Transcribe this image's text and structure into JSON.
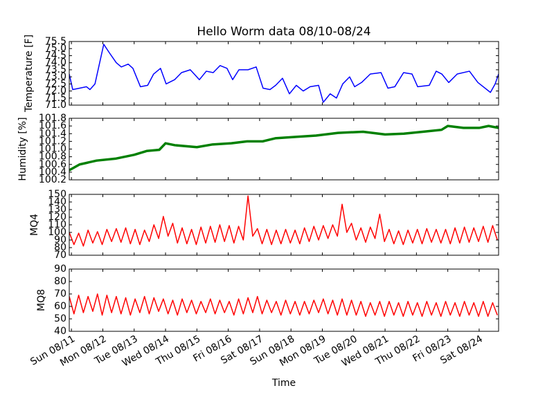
{
  "chart_data": {
    "type": "line",
    "title": "Hello Worm data 08/10-08/24",
    "xlabel": "Time",
    "xlim": [
      10.93,
      24.62
    ],
    "xticks": [
      {
        "value": 11,
        "label": "Sun 08/11"
      },
      {
        "value": 12,
        "label": "Mon 08/12"
      },
      {
        "value": 13,
        "label": "Tue 08/13"
      },
      {
        "value": 14,
        "label": "Wed 08/14"
      },
      {
        "value": 15,
        "label": "Thu 08/15"
      },
      {
        "value": 16,
        "label": "Fri 08/16"
      },
      {
        "value": 17,
        "label": "Sat 08/17"
      },
      {
        "value": 18,
        "label": "Sun 08/18"
      },
      {
        "value": 19,
        "label": "Mon 08/19"
      },
      {
        "value": 20,
        "label": "Tue 08/20"
      },
      {
        "value": 21,
        "label": "Wed 08/21"
      },
      {
        "value": 22,
        "label": "Thu 08/22"
      },
      {
        "value": 23,
        "label": "Fri 08/23"
      },
      {
        "value": 24,
        "label": "Sat 08/24"
      }
    ],
    "panels": [
      {
        "ylabel": "Temperature [F]",
        "ylim": [
          71.0,
          75.5
        ],
        "yticks": [
          {
            "value": 71,
            "label": "71.0"
          },
          71.5,
          {
            "value": 72,
            "label": "72.0"
          },
          72.5,
          {
            "value": 73,
            "label": "73.0"
          },
          73.5,
          {
            "value": 74,
            "label": "74.0"
          },
          74.5,
          {
            "value": 75,
            "label": "75.0"
          },
          75.5
        ],
        "series": [
          {
            "color": "#0000ff",
            "x": [
              10.93,
              11.04,
              11.26,
              11.48,
              11.59,
              11.75,
              12.03,
              12.21,
              12.43,
              12.59,
              12.81,
              12.96,
              13.2,
              13.43,
              13.62,
              13.84,
              14.02,
              14.29,
              14.51,
              14.79,
              15.08,
              15.3,
              15.52,
              15.74,
              15.96,
              16.14,
              16.34,
              16.63,
              16.89,
              17.11,
              17.33,
              17.51,
              17.73,
              17.95,
              18.17,
              18.39,
              18.61,
              18.88,
              19.03,
              19.25,
              19.45,
              19.65,
              19.87,
              20.03,
              20.25,
              20.53,
              20.87,
              21.09,
              21.31,
              21.59,
              21.86,
              22.04,
              22.41,
              22.63,
              22.81,
              23.03,
              23.3,
              23.69,
              23.96,
              24.36,
              24.51,
              24.62
            ],
            "values": [
              73.2,
              72.1,
              72.2,
              72.3,
              72.1,
              72.5,
              75.3,
              74.7,
              74.0,
              73.7,
              73.9,
              73.6,
              72.3,
              72.4,
              73.2,
              73.6,
              72.5,
              72.8,
              73.3,
              73.5,
              72.8,
              73.4,
              73.3,
              73.8,
              73.6,
              72.8,
              73.5,
              73.5,
              73.7,
              72.2,
              72.1,
              72.4,
              72.9,
              71.8,
              72.4,
              72.0,
              72.3,
              72.4,
              71.2,
              71.8,
              71.5,
              72.5,
              73.0,
              72.3,
              72.6,
              73.2,
              73.3,
              72.2,
              72.3,
              73.3,
              73.2,
              72.3,
              72.4,
              73.4,
              73.2,
              72.6,
              73.2,
              73.4,
              72.6,
              71.9,
              72.5,
              73.2
            ]
          }
        ]
      },
      {
        "ylabel": "Humidity [%]",
        "ylim": [
          100.2,
          101.8
        ],
        "yticks": [
          100.2,
          100.4,
          100.6,
          100.8,
          {
            "value": 101,
            "label": "101.0"
          },
          101.2,
          101.4,
          101.6,
          101.8
        ],
        "series": [
          {
            "color": "#008000",
            "x": [
              10.93,
              11.26,
              11.8,
              12.4,
              13.0,
              13.4,
              13.8,
              14.0,
              14.3,
              15.0,
              15.5,
              16.1,
              16.6,
              17.1,
              17.5,
              18.2,
              18.8,
              19.5,
              20.3,
              21.0,
              21.6,
              22.2,
              22.8,
              23.0,
              23.5,
              24.0,
              24.3,
              24.62
            ],
            "values": [
              100.45,
              100.6,
              100.7,
              100.75,
              100.85,
              100.95,
              100.98,
              101.15,
              101.1,
              101.05,
              101.12,
              101.15,
              101.2,
              101.2,
              101.28,
              101.32,
              101.35,
              101.42,
              101.45,
              101.38,
              101.4,
              101.45,
              101.5,
              101.6,
              101.55,
              101.55,
              101.6,
              101.55
            ]
          }
        ]
      },
      {
        "ylabel": "MQ4",
        "ylim": [
          70,
          150
        ],
        "yticks": [
          70,
          80,
          90,
          100,
          110,
          120,
          130,
          140,
          150
        ],
        "series": [
          {
            "color": "#ff0000",
            "x": [
              10.93,
              11.08,
              11.23,
              11.38,
              11.53,
              11.68,
              11.83,
              11.98,
              12.13,
              12.28,
              12.43,
              12.58,
              12.73,
              12.88,
              13.03,
              13.18,
              13.33,
              13.48,
              13.63,
              13.78,
              13.93,
              14.08,
              14.23,
              14.38,
              14.53,
              14.68,
              14.83,
              14.98,
              15.13,
              15.28,
              15.43,
              15.58,
              15.73,
              15.88,
              16.03,
              16.18,
              16.33,
              16.48,
              16.63,
              16.78,
              16.93,
              17.08,
              17.23,
              17.38,
              17.53,
              17.68,
              17.83,
              17.98,
              18.13,
              18.28,
              18.43,
              18.58,
              18.73,
              18.88,
              19.03,
              19.18,
              19.33,
              19.48,
              19.63,
              19.78,
              19.93,
              20.08,
              20.23,
              20.38,
              20.53,
              20.68,
              20.83,
              20.98,
              21.13,
              21.28,
              21.43,
              21.58,
              21.73,
              21.88,
              22.03,
              22.18,
              22.33,
              22.48,
              22.63,
              22.78,
              22.93,
              23.08,
              23.23,
              23.38,
              23.53,
              23.68,
              23.83,
              23.98,
              24.13,
              24.28,
              24.43,
              24.58
            ],
            "values": [
              100,
              84,
              99,
              82,
              103,
              86,
              101,
              84,
              104,
              88,
              105,
              87,
              106,
              85,
              104,
              84,
              103,
              88,
              110,
              92,
              121,
              95,
              112,
              86,
              106,
              85,
              104,
              84,
              107,
              86,
              108,
              87,
              110,
              88,
              109,
              86,
              108,
              90,
              148,
              95,
              105,
              85,
              104,
              84,
              103,
              85,
              104,
              86,
              103,
              85,
              106,
              88,
              108,
              90,
              109,
              92,
              110,
              95,
              137,
              100,
              112,
              90,
              106,
              87,
              107,
              92,
              124,
              88,
              104,
              85,
              102,
              84,
              103,
              86,
              104,
              85,
              105,
              87,
              104,
              86,
              104,
              85,
              106,
              86,
              107,
              87,
              106,
              88,
              108,
              87,
              109,
              90
            ]
          }
        ]
      },
      {
        "ylabel": "MQ8",
        "ylim": [
          40,
          90
        ],
        "yticks": [
          40,
          50,
          60,
          70,
          80,
          90
        ],
        "series": [
          {
            "color": "#ff0000",
            "x": [
              10.93,
              11.08,
              11.23,
              11.38,
              11.53,
              11.68,
              11.83,
              11.98,
              12.13,
              12.28,
              12.43,
              12.58,
              12.73,
              12.88,
              13.03,
              13.18,
              13.33,
              13.48,
              13.63,
              13.78,
              13.93,
              14.08,
              14.23,
              14.38,
              14.53,
              14.68,
              14.83,
              14.98,
              15.13,
              15.28,
              15.43,
              15.58,
              15.73,
              15.88,
              16.03,
              16.18,
              16.33,
              16.48,
              16.63,
              16.78,
              16.93,
              17.08,
              17.23,
              17.38,
              17.53,
              17.68,
              17.83,
              17.98,
              18.13,
              18.28,
              18.43,
              18.58,
              18.73,
              18.88,
              19.03,
              19.18,
              19.33,
              19.48,
              19.63,
              19.78,
              19.93,
              20.08,
              20.23,
              20.38,
              20.53,
              20.68,
              20.83,
              20.98,
              21.13,
              21.28,
              21.43,
              21.58,
              21.73,
              21.88,
              22.03,
              22.18,
              22.33,
              22.48,
              22.63,
              22.78,
              22.93,
              23.08,
              23.23,
              23.38,
              23.53,
              23.68,
              23.83,
              23.98,
              24.13,
              24.28,
              24.43,
              24.58
            ],
            "values": [
              68,
              54,
              69,
              55,
              68,
              56,
              70,
              53,
              69,
              55,
              68,
              54,
              67,
              53,
              66,
              55,
              68,
              54,
              67,
              56,
              66,
              54,
              65,
              53,
              66,
              55,
              65,
              54,
              64,
              55,
              66,
              54,
              65,
              55,
              64,
              53,
              66,
              54,
              67,
              55,
              68,
              54,
              65,
              55,
              64,
              53,
              65,
              54,
              64,
              53,
              64,
              54,
              65,
              55,
              66,
              54,
              65,
              53,
              66,
              53,
              65,
              53,
              64,
              52,
              63,
              53,
              64,
              52,
              64,
              53,
              63,
              52,
              64,
              53,
              63,
              52,
              64,
              53,
              63,
              52,
              64,
              53,
              63,
              52,
              64,
              53,
              63,
              52,
              64,
              52,
              63,
              53
            ]
          }
        ]
      }
    ]
  }
}
